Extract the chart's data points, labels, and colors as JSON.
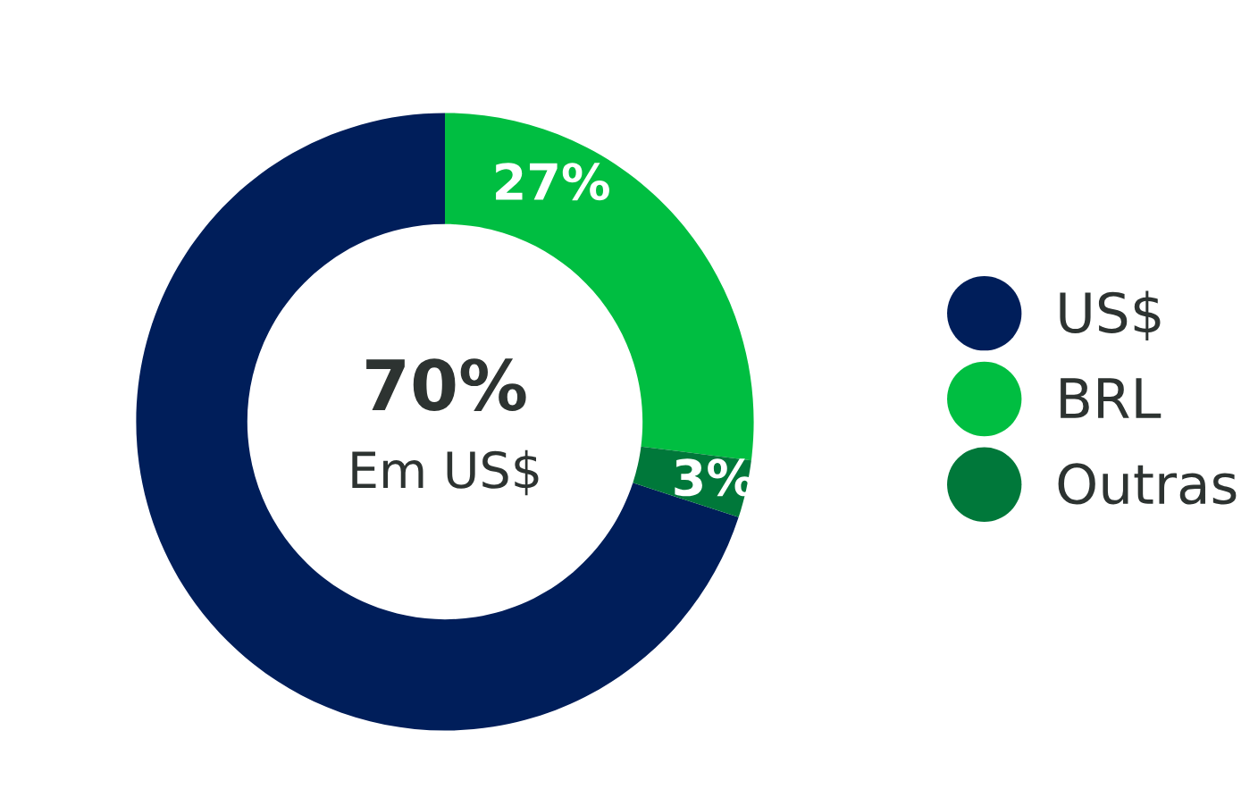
{
  "chart_data": {
    "type": "donut",
    "categories": [
      "US$",
      "BRL",
      "Outras"
    ],
    "values": [
      70,
      27,
      3
    ],
    "colors": [
      "#001e5a",
      "#00be41",
      "#00783a"
    ],
    "value_labels": [
      null,
      "27%",
      "3%"
    ],
    "annotations": [
      "70%",
      "Em US$"
    ],
    "legend": "right"
  }
}
